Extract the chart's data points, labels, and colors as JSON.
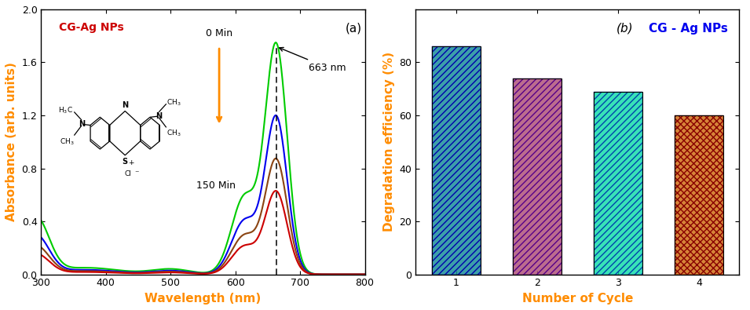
{
  "panel_a": {
    "xlabel": "Wavelength (nm)",
    "ylabel": "Absorbance (arb. units)",
    "xlim": [
      300,
      800
    ],
    "ylim": [
      0.0,
      2.0
    ],
    "yticks": [
      0.0,
      0.4,
      0.8,
      1.2,
      1.6,
      2.0
    ],
    "xticks": [
      300,
      400,
      500,
      600,
      700,
      800
    ],
    "label_color": "#FF8C00",
    "text_label": "CG-Ag NPs",
    "text_color": "#CC0000",
    "curves": [
      {
        "color": "#00CC00",
        "peak": 1.72,
        "shoulder": 0.58
      },
      {
        "color": "#0000EE",
        "peak": 1.18,
        "shoulder": 0.4
      },
      {
        "color": "#8B4513",
        "peak": 0.86,
        "shoulder": 0.29
      },
      {
        "color": "#CC0000",
        "peak": 0.62,
        "shoulder": 0.21
      }
    ]
  },
  "panel_b": {
    "xlabel": "Number of Cycle",
    "ylabel": "Degradation efficiency (%)",
    "legend_label": "CG - Ag NPs",
    "legend_color": "#0000EE",
    "label_color": "#FF8C00",
    "ylim": [
      0,
      100
    ],
    "yticks": [
      0,
      20,
      40,
      60,
      80
    ],
    "cycles": [
      1,
      2,
      3,
      4
    ],
    "values": [
      86,
      74,
      69,
      60
    ],
    "bar_width": 0.6
  }
}
